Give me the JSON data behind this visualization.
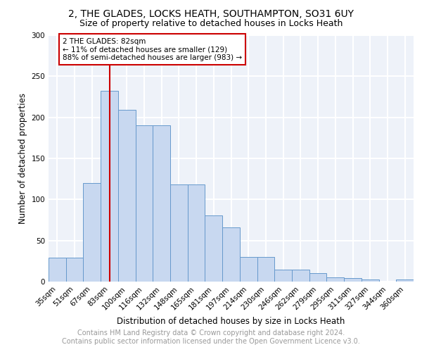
{
  "title_line1": "2, THE GLADES, LOCKS HEATH, SOUTHAMPTON, SO31 6UY",
  "title_line2": "Size of property relative to detached houses in Locks Heath",
  "xlabel": "Distribution of detached houses by size in Locks Heath",
  "ylabel": "Number of detached properties",
  "categories": [
    "35sqm",
    "51sqm",
    "67sqm",
    "83sqm",
    "100sqm",
    "116sqm",
    "132sqm",
    "148sqm",
    "165sqm",
    "181sqm",
    "197sqm",
    "214sqm",
    "230sqm",
    "246sqm",
    "262sqm",
    "279sqm",
    "295sqm",
    "311sqm",
    "327sqm",
    "344sqm",
    "360sqm"
  ],
  "values": [
    29,
    29,
    120,
    232,
    209,
    190,
    190,
    118,
    118,
    81,
    66,
    30,
    30,
    15,
    15,
    10,
    5,
    4,
    3,
    0,
    3
  ],
  "bar_color": "#c8d8f0",
  "bar_edge_color": "#6699cc",
  "vline_x_index": 3,
  "vline_color": "#cc0000",
  "annotation_text": "2 THE GLADES: 82sqm\n← 11% of detached houses are smaller (129)\n88% of semi-detached houses are larger (983) →",
  "annotation_box_color": "#cc0000",
  "annotation_text_color": "#000000",
  "ylim": [
    0,
    300
  ],
  "yticks": [
    0,
    50,
    100,
    150,
    200,
    250,
    300
  ],
  "footer_line1": "Contains HM Land Registry data © Crown copyright and database right 2024.",
  "footer_line2": "Contains public sector information licensed under the Open Government Licence v3.0.",
  "background_color": "#eef2f9",
  "grid_color": "#ffffff",
  "title_fontsize": 10,
  "subtitle_fontsize": 9,
  "axis_label_fontsize": 8.5,
  "tick_fontsize": 7.5,
  "footer_fontsize": 7,
  "annotation_fontsize": 7.5
}
